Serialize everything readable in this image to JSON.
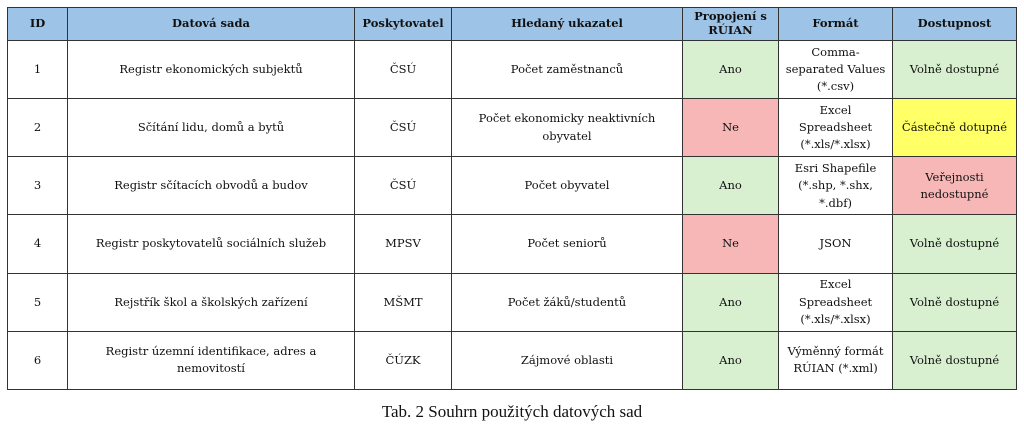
{
  "colors": {
    "header_bg": "#9dc3e6",
    "yes_bg": "#d8efd0",
    "no_bg": "#f8b7b7",
    "partial_bg": "#ffff66",
    "restricted_bg": "#f8b7b7",
    "available_bg": "#d8efd0"
  },
  "table": {
    "headers": [
      "ID",
      "Datová sada",
      "Poskytovatel",
      "Hledaný ukazatel",
      "Propojení s RÚIAN",
      "Formát",
      "Dostupnost"
    ],
    "rows": [
      {
        "id": "1",
        "dataset": "Registr ekonomických subjektů",
        "provider": "ČSÚ",
        "indicator": "Počet zaměstnanců",
        "link": "Ano",
        "format": "Comma-separated Values (*.csv)",
        "availability": "Volně dostupné"
      },
      {
        "id": "2",
        "dataset": "Sčítání lidu, domů a bytů",
        "provider": "ČSÚ",
        "indicator": "Počet ekonomicky neaktivních obyvatel",
        "link": "Ne",
        "format": "Excel Spreadsheet (*.xls/*.xlsx)",
        "availability": "Částečně dotupné"
      },
      {
        "id": "3",
        "dataset": "Registr sčítacích obvodů a budov",
        "provider": "ČSÚ",
        "indicator": "Počet obyvatel",
        "link": "Ano",
        "format": "Esri Shapefile (*.shp, *.shx, *.dbf)",
        "availability": "Veřejnosti nedostupné"
      },
      {
        "id": "4",
        "dataset": "Registr poskytovatelů sociálních služeb",
        "provider": "MPSV",
        "indicator": "Počet seniorů",
        "link": "Ne",
        "format": "JSON",
        "availability": "Volně dostupné"
      },
      {
        "id": "5",
        "dataset": "Rejstřík škol a školských zařízení",
        "provider": "MŠMT",
        "indicator": "Počet žáků/studentů",
        "link": "Ano",
        "format": "Excel Spreadsheet (*.xls/*.xlsx)",
        "availability": "Volně dostupné"
      },
      {
        "id": "6",
        "dataset": "Registr územní identifikace, adres a nemovitostí",
        "provider": "ČÚZK",
        "indicator": "Zájmové oblasti",
        "link": "Ano",
        "format": "Výměnný formát RÚIAN (*.xml)",
        "availability": "Volně dostupné"
      }
    ]
  },
  "caption": "Tab. 2 Souhrn použitých datových sad"
}
